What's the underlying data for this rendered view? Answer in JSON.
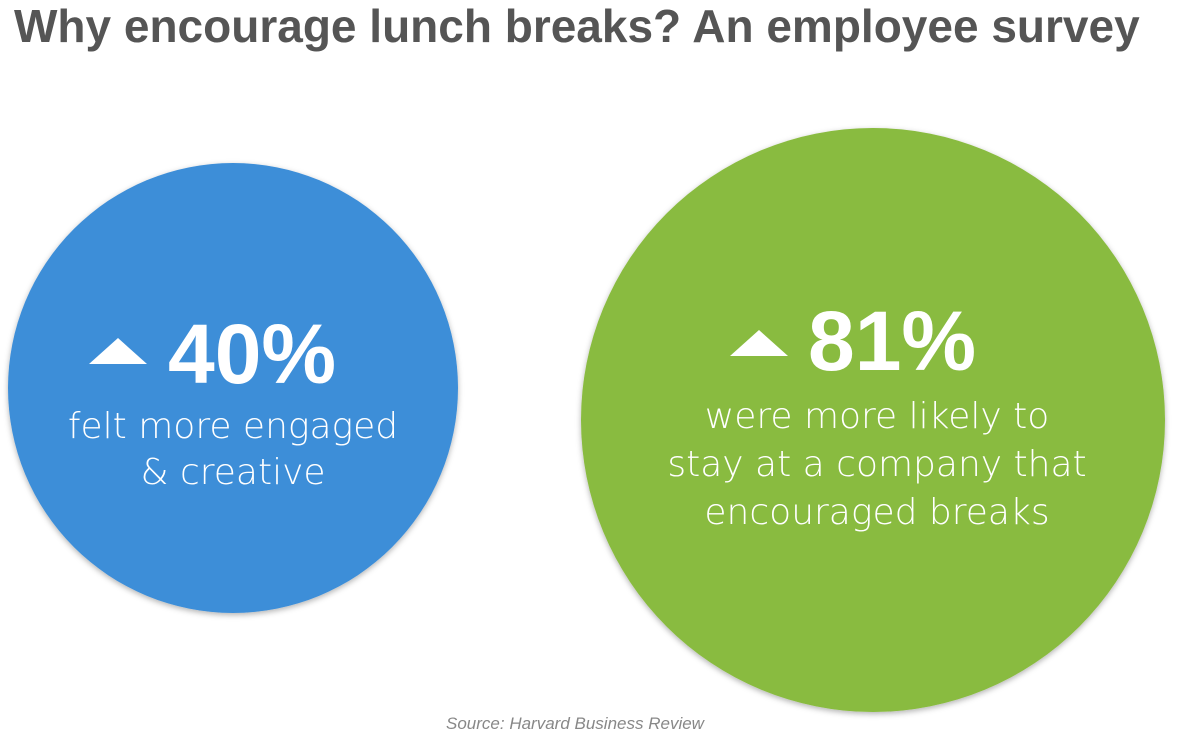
{
  "title": "Why encourage lunch breaks? An employee survey",
  "stats": [
    {
      "figure": "40%",
      "lines": [
        "felt more engaged",
        "& creative"
      ]
    },
    {
      "figure": "81%",
      "lines": [
        "were more likely to",
        "stay at a company that",
        "encouraged breaks"
      ]
    }
  ],
  "source": "Source: Harvard Business Review"
}
